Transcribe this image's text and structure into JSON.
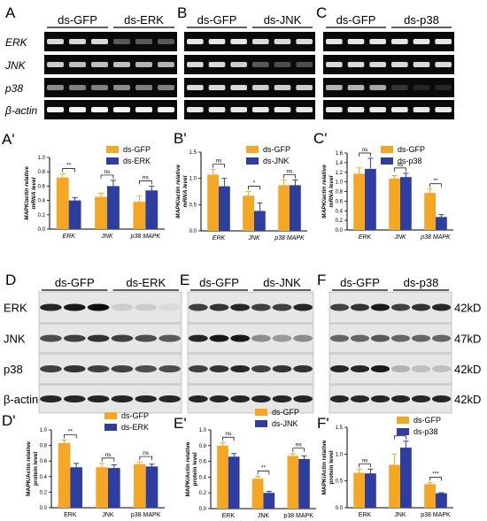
{
  "colors": {
    "gfp": "#F5A623",
    "kd": "#2E3E9E",
    "gel_bg": "#0a0a0a",
    "blot_bg": "#e6e6e6"
  },
  "gels": [
    {
      "letter": "A",
      "groups": [
        "ds-GFP",
        "ds-ERK"
      ],
      "row_labels": [
        "ERK",
        "JNK",
        "p38",
        "β-actin"
      ],
      "intensity": [
        [
          0.85,
          0.85,
          0.85,
          0.35,
          0.35,
          0.35
        ],
        [
          0.8,
          0.75,
          0.75,
          0.75,
          0.7,
          0.7
        ],
        [
          0.55,
          0.5,
          0.5,
          0.55,
          0.5,
          0.5
        ],
        [
          0.95,
          0.95,
          0.95,
          0.95,
          0.95,
          0.95
        ]
      ]
    },
    {
      "letter": "B",
      "groups": [
        "ds-GFP",
        "ds-JNK"
      ],
      "intensity": [
        [
          0.9,
          0.9,
          0.9,
          0.85,
          0.85,
          0.85
        ],
        [
          0.85,
          0.85,
          0.8,
          0.35,
          0.3,
          0.3
        ],
        [
          0.85,
          0.85,
          0.85,
          0.8,
          0.8,
          0.8
        ],
        [
          0.9,
          0.9,
          0.9,
          0.9,
          0.9,
          0.9
        ]
      ]
    },
    {
      "letter": "C",
      "groups": [
        "ds-GFP",
        "ds-p38"
      ],
      "intensity": [
        [
          0.9,
          0.9,
          0.9,
          0.9,
          0.9,
          0.9
        ],
        [
          0.85,
          0.85,
          0.85,
          0.85,
          0.85,
          0.85
        ],
        [
          0.7,
          0.7,
          0.65,
          0.2,
          0.15,
          0.15
        ],
        [
          0.9,
          0.9,
          0.9,
          0.9,
          0.9,
          0.9
        ]
      ]
    }
  ],
  "mrna_charts": [
    {
      "letter": "A'",
      "ylabel": "MAPK/actin relative\nmRNA level",
      "categories": [
        "ERK",
        "JNK",
        "p38 MAPK"
      ],
      "legend": [
        "ds-GFP",
        "ds-ERK"
      ],
      "ylim": [
        0,
        1.0
      ],
      "yticks": [
        0.0,
        0.2,
        0.4,
        0.6,
        0.8,
        1.0
      ],
      "gfp": [
        0.72,
        0.45,
        0.38
      ],
      "kd": [
        0.4,
        0.6,
        0.54
      ],
      "gfp_err": [
        0.05,
        0.05,
        0.08
      ],
      "kd_err": [
        0.04,
        0.08,
        0.06
      ],
      "sig": [
        "**",
        "ns",
        "ns"
      ]
    },
    {
      "letter": "B'",
      "ylabel": "MAPK/actin relative\nmRNA level",
      "categories": [
        "ERK",
        "JNK",
        "p38 MAPK"
      ],
      "legend": [
        "ds-GFP",
        "ds-JNK"
      ],
      "ylim": [
        0,
        1.5
      ],
      "yticks": [
        0.0,
        0.5,
        1.0,
        1.5
      ],
      "gfp": [
        1.07,
        0.67,
        0.87
      ],
      "kd": [
        0.85,
        0.38,
        0.87
      ],
      "gfp_err": [
        0.1,
        0.08,
        0.1
      ],
      "kd_err": [
        0.15,
        0.15,
        0.1
      ],
      "sig": [
        "ns",
        "*",
        "ns"
      ]
    },
    {
      "letter": "C'",
      "ylabel": "MAPK/actin relative\nmRNA level",
      "categories": [
        "ERK",
        "JNK",
        "p38 MAPK"
      ],
      "legend": [
        "ds-GFP",
        "ds-p38"
      ],
      "ylim": [
        0,
        1.6
      ],
      "yticks": [
        0.0,
        0.2,
        0.4,
        0.6,
        0.8,
        1.0,
        1.2,
        1.4,
        1.6
      ],
      "gfp": [
        1.17,
        1.07,
        0.77
      ],
      "kd": [
        1.27,
        1.1,
        0.27
      ],
      "gfp_err": [
        0.12,
        0.06,
        0.08
      ],
      "kd_err": [
        0.22,
        0.08,
        0.05
      ],
      "sig": [
        "ns",
        "ns",
        "**"
      ]
    }
  ],
  "blots": [
    {
      "letter": "D",
      "groups": [
        "ds-GFP",
        "ds-ERK"
      ],
      "row_labels": [
        "ERK",
        "JNK",
        "p38",
        "β-actin"
      ],
      "intensity": [
        [
          0.85,
          0.9,
          0.95,
          0.2,
          0.2,
          0.15
        ],
        [
          0.7,
          0.75,
          0.8,
          0.75,
          0.7,
          0.65
        ],
        [
          0.75,
          0.8,
          0.75,
          0.75,
          0.7,
          0.7
        ],
        [
          0.85,
          0.85,
          0.85,
          0.85,
          0.85,
          0.85
        ]
      ]
    },
    {
      "letter": "E",
      "groups": [
        "ds-GFP",
        "ds-JNK"
      ],
      "intensity": [
        [
          0.75,
          0.8,
          0.85,
          0.75,
          0.75,
          0.85
        ],
        [
          0.85,
          0.9,
          0.9,
          0.45,
          0.4,
          0.45
        ],
        [
          0.75,
          0.8,
          0.85,
          0.75,
          0.8,
          0.8
        ],
        [
          0.85,
          0.85,
          0.85,
          0.85,
          0.85,
          0.85
        ]
      ]
    },
    {
      "letter": "F",
      "groups": [
        "ds-GFP",
        "ds-p38"
      ],
      "right_labels": [
        "42kD",
        "47kD",
        "42kD",
        "42kD"
      ],
      "intensity": [
        [
          0.75,
          0.8,
          0.9,
          0.75,
          0.8,
          0.85
        ],
        [
          0.6,
          0.6,
          0.65,
          0.6,
          0.6,
          0.6
        ],
        [
          0.85,
          0.85,
          0.9,
          0.3,
          0.25,
          0.25
        ],
        [
          0.85,
          0.85,
          0.85,
          0.85,
          0.85,
          0.85
        ]
      ]
    }
  ],
  "protein_charts": [
    {
      "letter": "D'",
      "ylabel": "MAPK/Actin relative\nprotein level",
      "categories": [
        "ERK",
        "JNK",
        "p38 MAPK"
      ],
      "legend": [
        "ds-GFP",
        "ds-ERK"
      ],
      "ylim": [
        0,
        1.0
      ],
      "yticks": [
        0.0,
        0.2,
        0.4,
        0.6,
        0.8,
        1.0
      ],
      "gfp": [
        0.83,
        0.52,
        0.56
      ],
      "kd": [
        0.52,
        0.51,
        0.53
      ],
      "gfp_err": [
        0.04,
        0.05,
        0.03
      ],
      "kd_err": [
        0.05,
        0.04,
        0.03
      ],
      "sig": [
        "**",
        "ns",
        "ns"
      ]
    },
    {
      "letter": "E'",
      "ylabel": "MAPK/Actin relative\nprotein level",
      "categories": [
        "ERK",
        "JNK",
        "p38 MAPK"
      ],
      "legend": [
        "ds-GFP",
        "ds-JNK"
      ],
      "ylim": [
        0,
        1.0
      ],
      "yticks": [
        0.0,
        0.2,
        0.4,
        0.6,
        0.8,
        1.0
      ],
      "gfp": [
        0.8,
        0.38,
        0.67
      ],
      "kd": [
        0.66,
        0.2,
        0.63
      ],
      "gfp_err": [
        0.04,
        0.03,
        0.03
      ],
      "kd_err": [
        0.04,
        0.02,
        0.04
      ],
      "sig": [
        "ns",
        "**",
        "ns"
      ]
    },
    {
      "letter": "F'",
      "ylabel": "MAPK/Actin relative\nprotein level",
      "categories": [
        "ERK",
        "JNK",
        "p38 MAPK"
      ],
      "legend": [
        "ds-GFP",
        "ds-p38"
      ],
      "ylim": [
        0,
        1.5
      ],
      "yticks": [
        0.0,
        0.5,
        1.0,
        1.5
      ],
      "gfp": [
        0.65,
        0.8,
        0.44
      ],
      "kd": [
        0.64,
        1.12,
        0.27
      ],
      "gfp_err": [
        0.07,
        0.2,
        0.03
      ],
      "kd_err": [
        0.08,
        0.12,
        0.01
      ],
      "sig": [
        "ns",
        "ns",
        "***"
      ]
    }
  ]
}
